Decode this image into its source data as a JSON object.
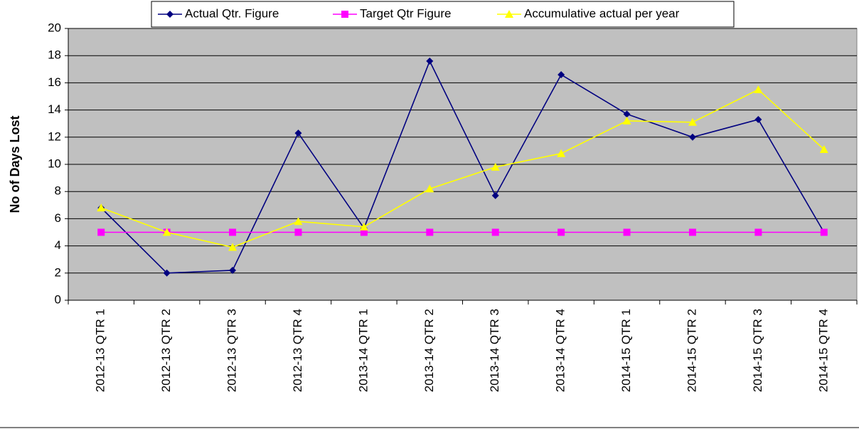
{
  "chart_data": {
    "type": "line",
    "y_label": "No of Days Lost",
    "categories": [
      "2012-13 QTR 1",
      "2012-13 QTR 2",
      "2012-13 QTR 3",
      "2012-13 QTR 4",
      "2013-14 QTR 1",
      "2013-14 QTR 2",
      "2013-14 QTR 3",
      "2013-14 QTR 4",
      "2014-15 QTR 1",
      "2014-15 QTR 2",
      "2014-15 QTR 3",
      "2014-15 QTR 4"
    ],
    "series": [
      {
        "name": "Actual Qtr. Figure",
        "color": "#000080",
        "marker": "diamond",
        "values": [
          6.8,
          2.0,
          2.2,
          12.3,
          5.3,
          17.6,
          7.7,
          16.6,
          13.7,
          12.0,
          13.3,
          5.0
        ]
      },
      {
        "name": "Target Qtr Figure",
        "color": "#ff00ff",
        "marker": "square",
        "values": [
          5,
          5,
          5,
          5,
          5,
          5,
          5,
          5,
          5,
          5,
          5,
          5
        ]
      },
      {
        "name": "Accumulative actual per year",
        "color": "#ffff00",
        "marker": "triangle",
        "values": [
          6.8,
          5.0,
          3.9,
          5.8,
          5.4,
          8.2,
          9.8,
          10.8,
          13.2,
          13.1,
          15.5,
          11.1
        ]
      }
    ],
    "ylim": [
      0,
      20
    ],
    "yticks": [
      0,
      2,
      4,
      6,
      8,
      10,
      12,
      14,
      16,
      18,
      20
    ],
    "grid": true,
    "legend": "top",
    "plot_background": "#c0c0c0"
  }
}
